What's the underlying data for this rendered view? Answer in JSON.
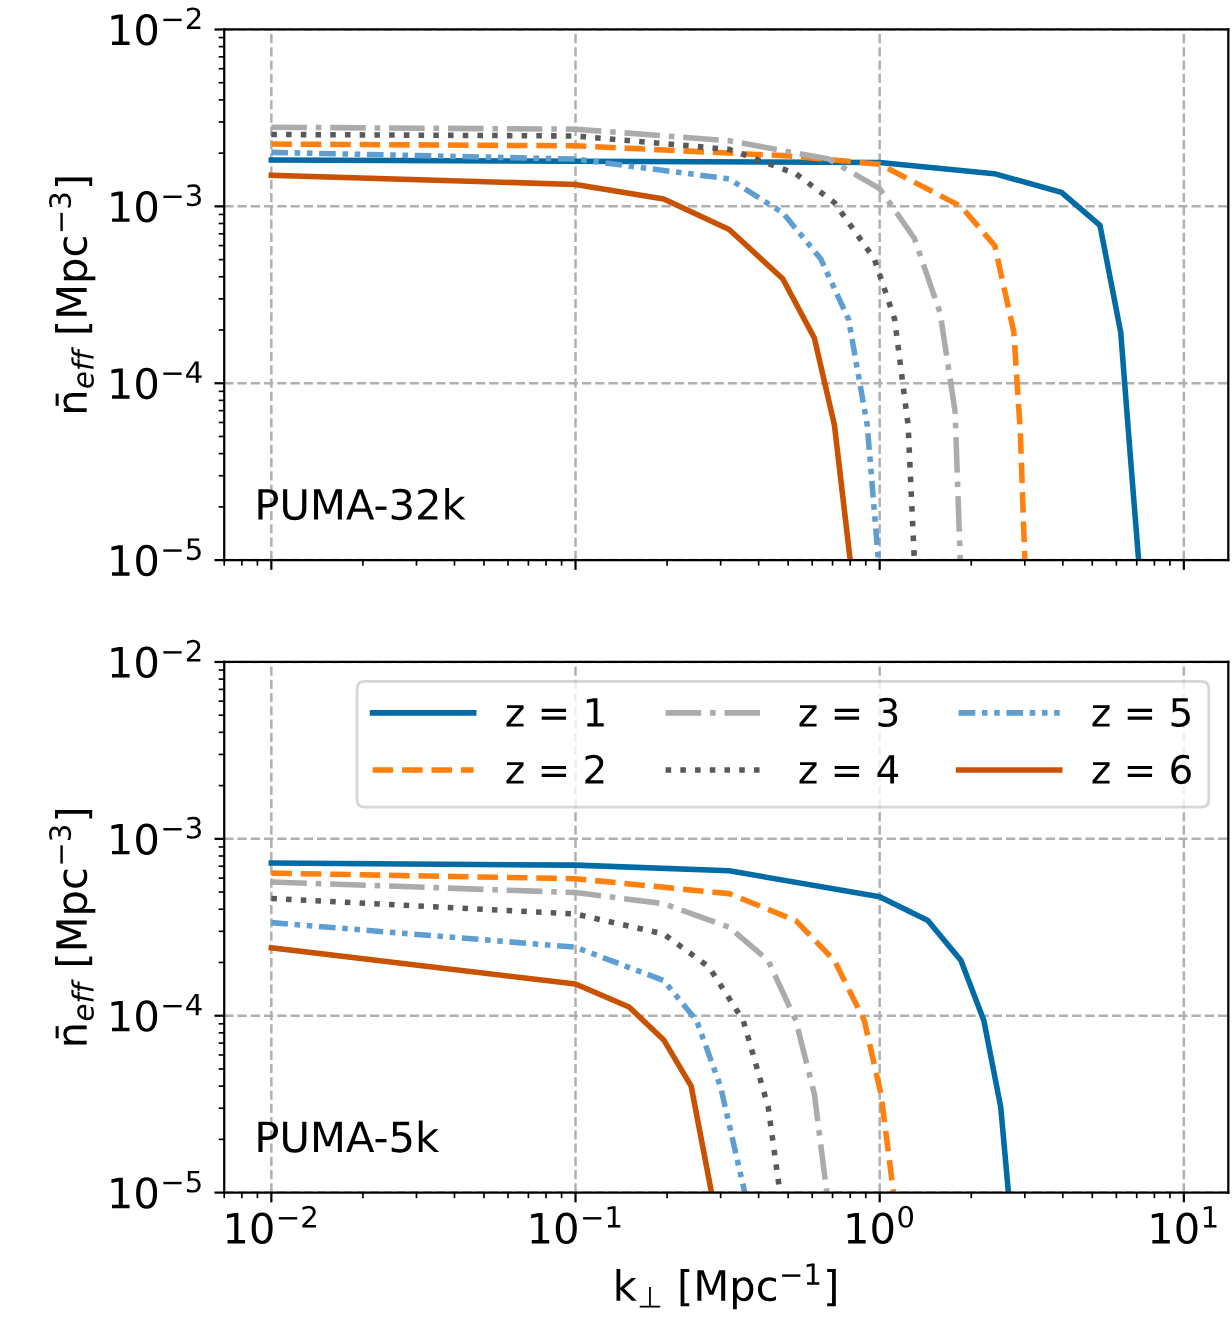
{
  "chart_data": [
    {
      "type": "line",
      "ylabel": "n̄$_{eff}$ [Mpc$^{−3}$]",
      "annotations": [
        "PUMA-32k"
      ],
      "log": "xy",
      "grid": true,
      "legend": false,
      "tick_labels": "y",
      "xlim": [
        0.007,
        14
      ],
      "ylim": [
        1e-05,
        0.01
      ],
      "xticks": [
        {
          "value": 0.01,
          "label": null
        },
        {
          "value": 0.1,
          "label": null
        },
        {
          "value": 1,
          "label": null
        },
        {
          "value": 10,
          "label": null
        }
      ],
      "yticks": [
        {
          "value": 1e-05,
          "label": "10$^{−5}$"
        },
        {
          "value": 0.0001,
          "label": "10$^{−4}$"
        },
        {
          "value": 0.001,
          "label": "10$^{−3}$"
        },
        {
          "value": 0.01,
          "label": "10$^{−2}$"
        }
      ],
      "series": [
        {
          "color": "#006ba4",
          "line_style": "solid",
          "x": [
            0.01,
            0.1,
            1,
            2.38,
            3.96,
            5.3,
            6.2,
            6.7,
            7.1
          ],
          "values": [
            0.00183,
            0.0018,
            0.00177,
            0.00153,
            0.0012,
            0.00078,
            0.000194,
            3.5e-05,
            1e-05
          ]
        },
        {
          "color": "#ff800e",
          "line_style": "dashed",
          "x": [
            0.01,
            0.1,
            0.5,
            1,
            1.85,
            2.39,
            2.76,
            2.9,
            3.0
          ],
          "values": [
            0.00225,
            0.0022,
            0.00193,
            0.00173,
            0.001,
            0.0006,
            0.000195,
            5.3e-05,
            1e-05
          ]
        },
        {
          "color": "#ababab",
          "line_style": "dashdot",
          "x": [
            0.01,
            0.1,
            0.32,
            0.68,
            1,
            1.3,
            1.58,
            1.77,
            1.84
          ],
          "values": [
            0.0028,
            0.00273,
            0.00235,
            0.00185,
            0.00126,
            0.00066,
            0.00025,
            6.9e-05,
            1e-05
          ]
        },
        {
          "color": "#595959",
          "line_style": "dotted",
          "x": [
            0.01,
            0.1,
            0.32,
            0.53,
            0.71,
            0.96,
            1.12,
            1.24,
            1.3
          ],
          "values": [
            0.00255,
            0.0025,
            0.0021,
            0.00153,
            0.00105,
            0.000505,
            0.00023,
            5.8e-05,
            1e-05
          ]
        },
        {
          "color": "#5f9ed1",
          "line_style": "dashdotdot",
          "x": [
            0.01,
            0.1,
            0.32,
            0.48,
            0.64,
            0.79,
            0.91,
            0.99
          ],
          "values": [
            0.00202,
            0.00185,
            0.00143,
            0.00092,
            0.000505,
            0.00023,
            5.8e-05,
            1e-05
          ]
        },
        {
          "color": "#c85200",
          "line_style": "solid",
          "x": [
            0.01,
            0.1,
            0.195,
            0.32,
            0.48,
            0.61,
            0.71,
            0.8
          ],
          "values": [
            0.0015,
            0.00133,
            0.0011,
            0.00074,
            0.00039,
            0.00018,
            5.8e-05,
            1e-05
          ]
        }
      ]
    },
    {
      "type": "line",
      "ylabel": "n̄$_{eff}$ [Mpc$^{−3}$]",
      "xlabel": "k$_{⊥}$ [Mpc$^{−1}$]",
      "annotations": [
        "PUMA-5k"
      ],
      "log": "xy",
      "grid": true,
      "legend": "top right",
      "xlim": [
        0.007,
        14
      ],
      "ylim": [
        1e-05,
        0.01
      ],
      "xticks": [
        {
          "value": 0.01,
          "label": "10$^{−2}$"
        },
        {
          "value": 0.1,
          "label": "10$^{−1}$"
        },
        {
          "value": 1,
          "label": "10$^{0}$"
        },
        {
          "value": 10,
          "label": "10$^{1}$"
        }
      ],
      "yticks": [
        {
          "value": 1e-05,
          "label": "10$^{−5}$"
        },
        {
          "value": 0.0001,
          "label": "10$^{−4}$"
        },
        {
          "value": 0.001,
          "label": "10$^{−3}$"
        },
        {
          "value": 0.01,
          "label": "10$^{−2}$"
        }
      ],
      "series": [
        {
          "name": "z = 1",
          "color": "#006ba4",
          "line_style": "solid",
          "x": [
            0.01,
            0.1,
            0.32,
            1,
            1.44,
            1.85,
            2.2,
            2.5,
            2.65
          ],
          "values": [
            0.00073,
            0.00071,
            0.00066,
            0.00047,
            0.000345,
            0.000205,
            9.4e-05,
            3.05e-05,
            1e-05
          ]
        },
        {
          "name": "z = 2",
          "color": "#ff800e",
          "line_style": "dashed",
          "x": [
            0.01,
            0.1,
            0.32,
            0.53,
            0.71,
            0.89,
            1.01,
            1.11
          ],
          "values": [
            0.00064,
            0.000595,
            0.00049,
            0.000345,
            0.000205,
            9.4e-05,
            3.6e-05,
            1e-05
          ]
        },
        {
          "name": "z = 3",
          "color": "#ababab",
          "line_style": "dashdot",
          "x": [
            0.01,
            0.1,
            0.195,
            0.32,
            0.43,
            0.53,
            0.61,
            0.67
          ],
          "values": [
            0.00057,
            0.000497,
            0.00043,
            0.000316,
            0.000205,
            9.4e-05,
            3.6e-05,
            1e-05
          ]
        },
        {
          "name": "z = 4",
          "color": "#595959",
          "line_style": "dotted",
          "x": [
            0.01,
            0.1,
            0.195,
            0.275,
            0.356,
            0.43,
            0.47
          ],
          "values": [
            0.00046,
            0.000376,
            0.00029,
            0.000188,
            9.4e-05,
            3.05e-05,
            1e-05
          ]
        },
        {
          "name": "z = 5",
          "color": "#5f9ed1",
          "line_style": "dashdotdot",
          "x": [
            0.01,
            0.1,
            0.195,
            0.25,
            0.3,
            0.36
          ],
          "values": [
            0.000336,
            0.000244,
            0.000158,
            9.4e-05,
            3.96e-05,
            1e-05
          ]
        },
        {
          "name": "z = 6",
          "color": "#c85200",
          "line_style": "solid",
          "x": [
            0.01,
            0.1,
            0.15,
            0.195,
            0.24,
            0.28
          ],
          "values": [
            0.000242,
            0.000151,
            0.000112,
            7.3e-05,
            4e-05,
            1e-05
          ]
        }
      ]
    }
  ]
}
